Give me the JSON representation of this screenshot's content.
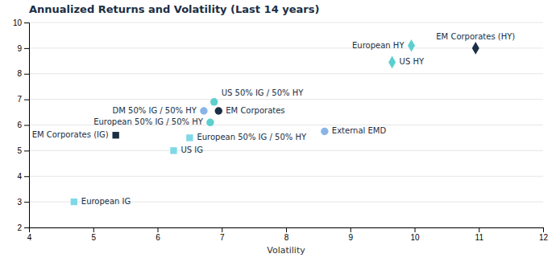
{
  "chart_data": {
    "type": "scatter",
    "title": "Annualized Returns and Volatility (Last 14 years)",
    "xlabel": "Volatility",
    "xlim": [
      4,
      12
    ],
    "ylim": [
      2,
      10
    ],
    "xticks": [
      4,
      5,
      6,
      7,
      8,
      9,
      10,
      11,
      12
    ],
    "yticks": [
      2,
      3,
      4,
      5,
      6,
      7,
      8,
      9,
      10
    ],
    "grid": true,
    "series": [
      {
        "marker": "square",
        "x": [
          4.7,
          6.25,
          5.35,
          6.5
        ],
        "values": [
          3.0,
          5.0,
          5.6,
          5.5
        ],
        "colors": [
          "#7fd8e8",
          "#7fd8e8",
          "#1a2e44",
          "#7fd8e8"
        ],
        "labels": [
          "European IG",
          "US IG",
          "EM Corporates (IG)",
          "European 50% IG / 50% HY"
        ]
      },
      {
        "marker": "circle",
        "x": [
          6.72,
          6.88,
          6.95,
          6.82,
          8.6
        ],
        "values": [
          6.55,
          6.9,
          6.55,
          6.1,
          5.75
        ],
        "colors": [
          "#8ab4e8",
          "#5dcfcf",
          "#1a2e44",
          "#5dcfcf",
          "#8ab4e8"
        ],
        "labels": [
          "DM 50% IG / 50% HY",
          "US 50% IG / 50% HY",
          "EM Corporates",
          "European 50% IG / 50% HY",
          "External EMD"
        ]
      },
      {
        "marker": "diamond",
        "x": [
          9.65,
          9.95,
          10.95
        ],
        "values": [
          8.45,
          9.1,
          9.0
        ],
        "colors": [
          "#5dcfcf",
          "#5dcfcf",
          "#1a2e44"
        ],
        "labels": [
          "US HY",
          "European HY",
          "EM Corporates (HY)"
        ]
      }
    ]
  }
}
